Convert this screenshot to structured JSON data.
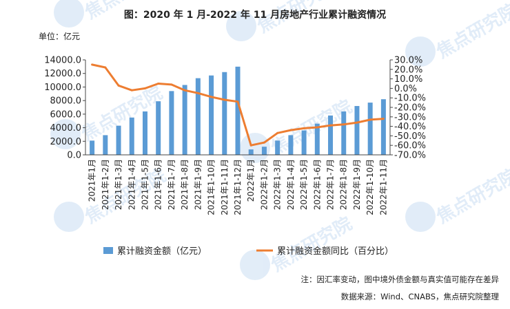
{
  "chart_data": {
    "type": "bar",
    "title": "图：2020 年 1 月-2022 年 11 月房地产行业累计融资情况",
    "unit_label": "单位：亿元",
    "categories": [
      "2021年1月",
      "2021年1-2月",
      "2021年1-3月",
      "2021年1-4月",
      "2021年1-5月",
      "2021年1-6月",
      "2021年1-7月",
      "2021年1-8月",
      "2021年1-9月",
      "2021年1-10月",
      "2021年1-11月",
      "2021年1-12月",
      "2022年1月",
      "2022年1-2月",
      "2022年1-3月",
      "2022年1-4月",
      "2022年1-5月",
      "2022年1-6月",
      "2022年1-7月",
      "2022年1-8月",
      "2022年1-9月",
      "2022年1-10月",
      "2022年1-11月"
    ],
    "series": [
      {
        "name": "累计融资金额（亿元）",
        "type": "bar",
        "axis": "left",
        "color": "#5b9bd5",
        "values": [
          2100,
          2900,
          4300,
          5500,
          6400,
          7900,
          9400,
          10300,
          11300,
          11700,
          12200,
          13000,
          800,
          1200,
          2100,
          2900,
          3600,
          4600,
          5800,
          6400,
          7200,
          7700,
          8200
        ]
      },
      {
        "name": "累计融资金额同比（百分比）",
        "type": "line",
        "axis": "right",
        "color": "#ed7d31",
        "values": [
          25.0,
          22.0,
          3.0,
          -2.0,
          0.0,
          5.0,
          4.0,
          -2.0,
          -5.0,
          -9.0,
          -12.0,
          -14.0,
          -60.0,
          -57.0,
          -47.0,
          -44.0,
          -42.0,
          -41.0,
          -39.0,
          -38.0,
          -36.0,
          -33.0,
          -32.0
        ]
      }
    ],
    "left_axis": {
      "ylim": [
        0,
        14000
      ],
      "ticks": [
        "0.0",
        "2000.0",
        "4000.0",
        "6000.0",
        "8000.0",
        "10000.0",
        "12000.0",
        "14000.0"
      ]
    },
    "right_axis": {
      "ylim": [
        -70,
        30
      ],
      "ticks": [
        "-70.0%",
        "-60.0%",
        "-50.0%",
        "-40.0%",
        "-30.0%",
        "-20.0%",
        "-10.0%",
        "0.0%",
        "10.0%",
        "20.0%",
        "30.0%"
      ]
    },
    "legend_position": "bottom",
    "grid": false
  },
  "notes": {
    "note_text": "注：因汇率变动，图中境外债金额与真实值可能存在差异",
    "source_text": "数据来源：Wind、CNABS，焦点研究院整理"
  },
  "watermark": {
    "text": "焦点研究院"
  }
}
